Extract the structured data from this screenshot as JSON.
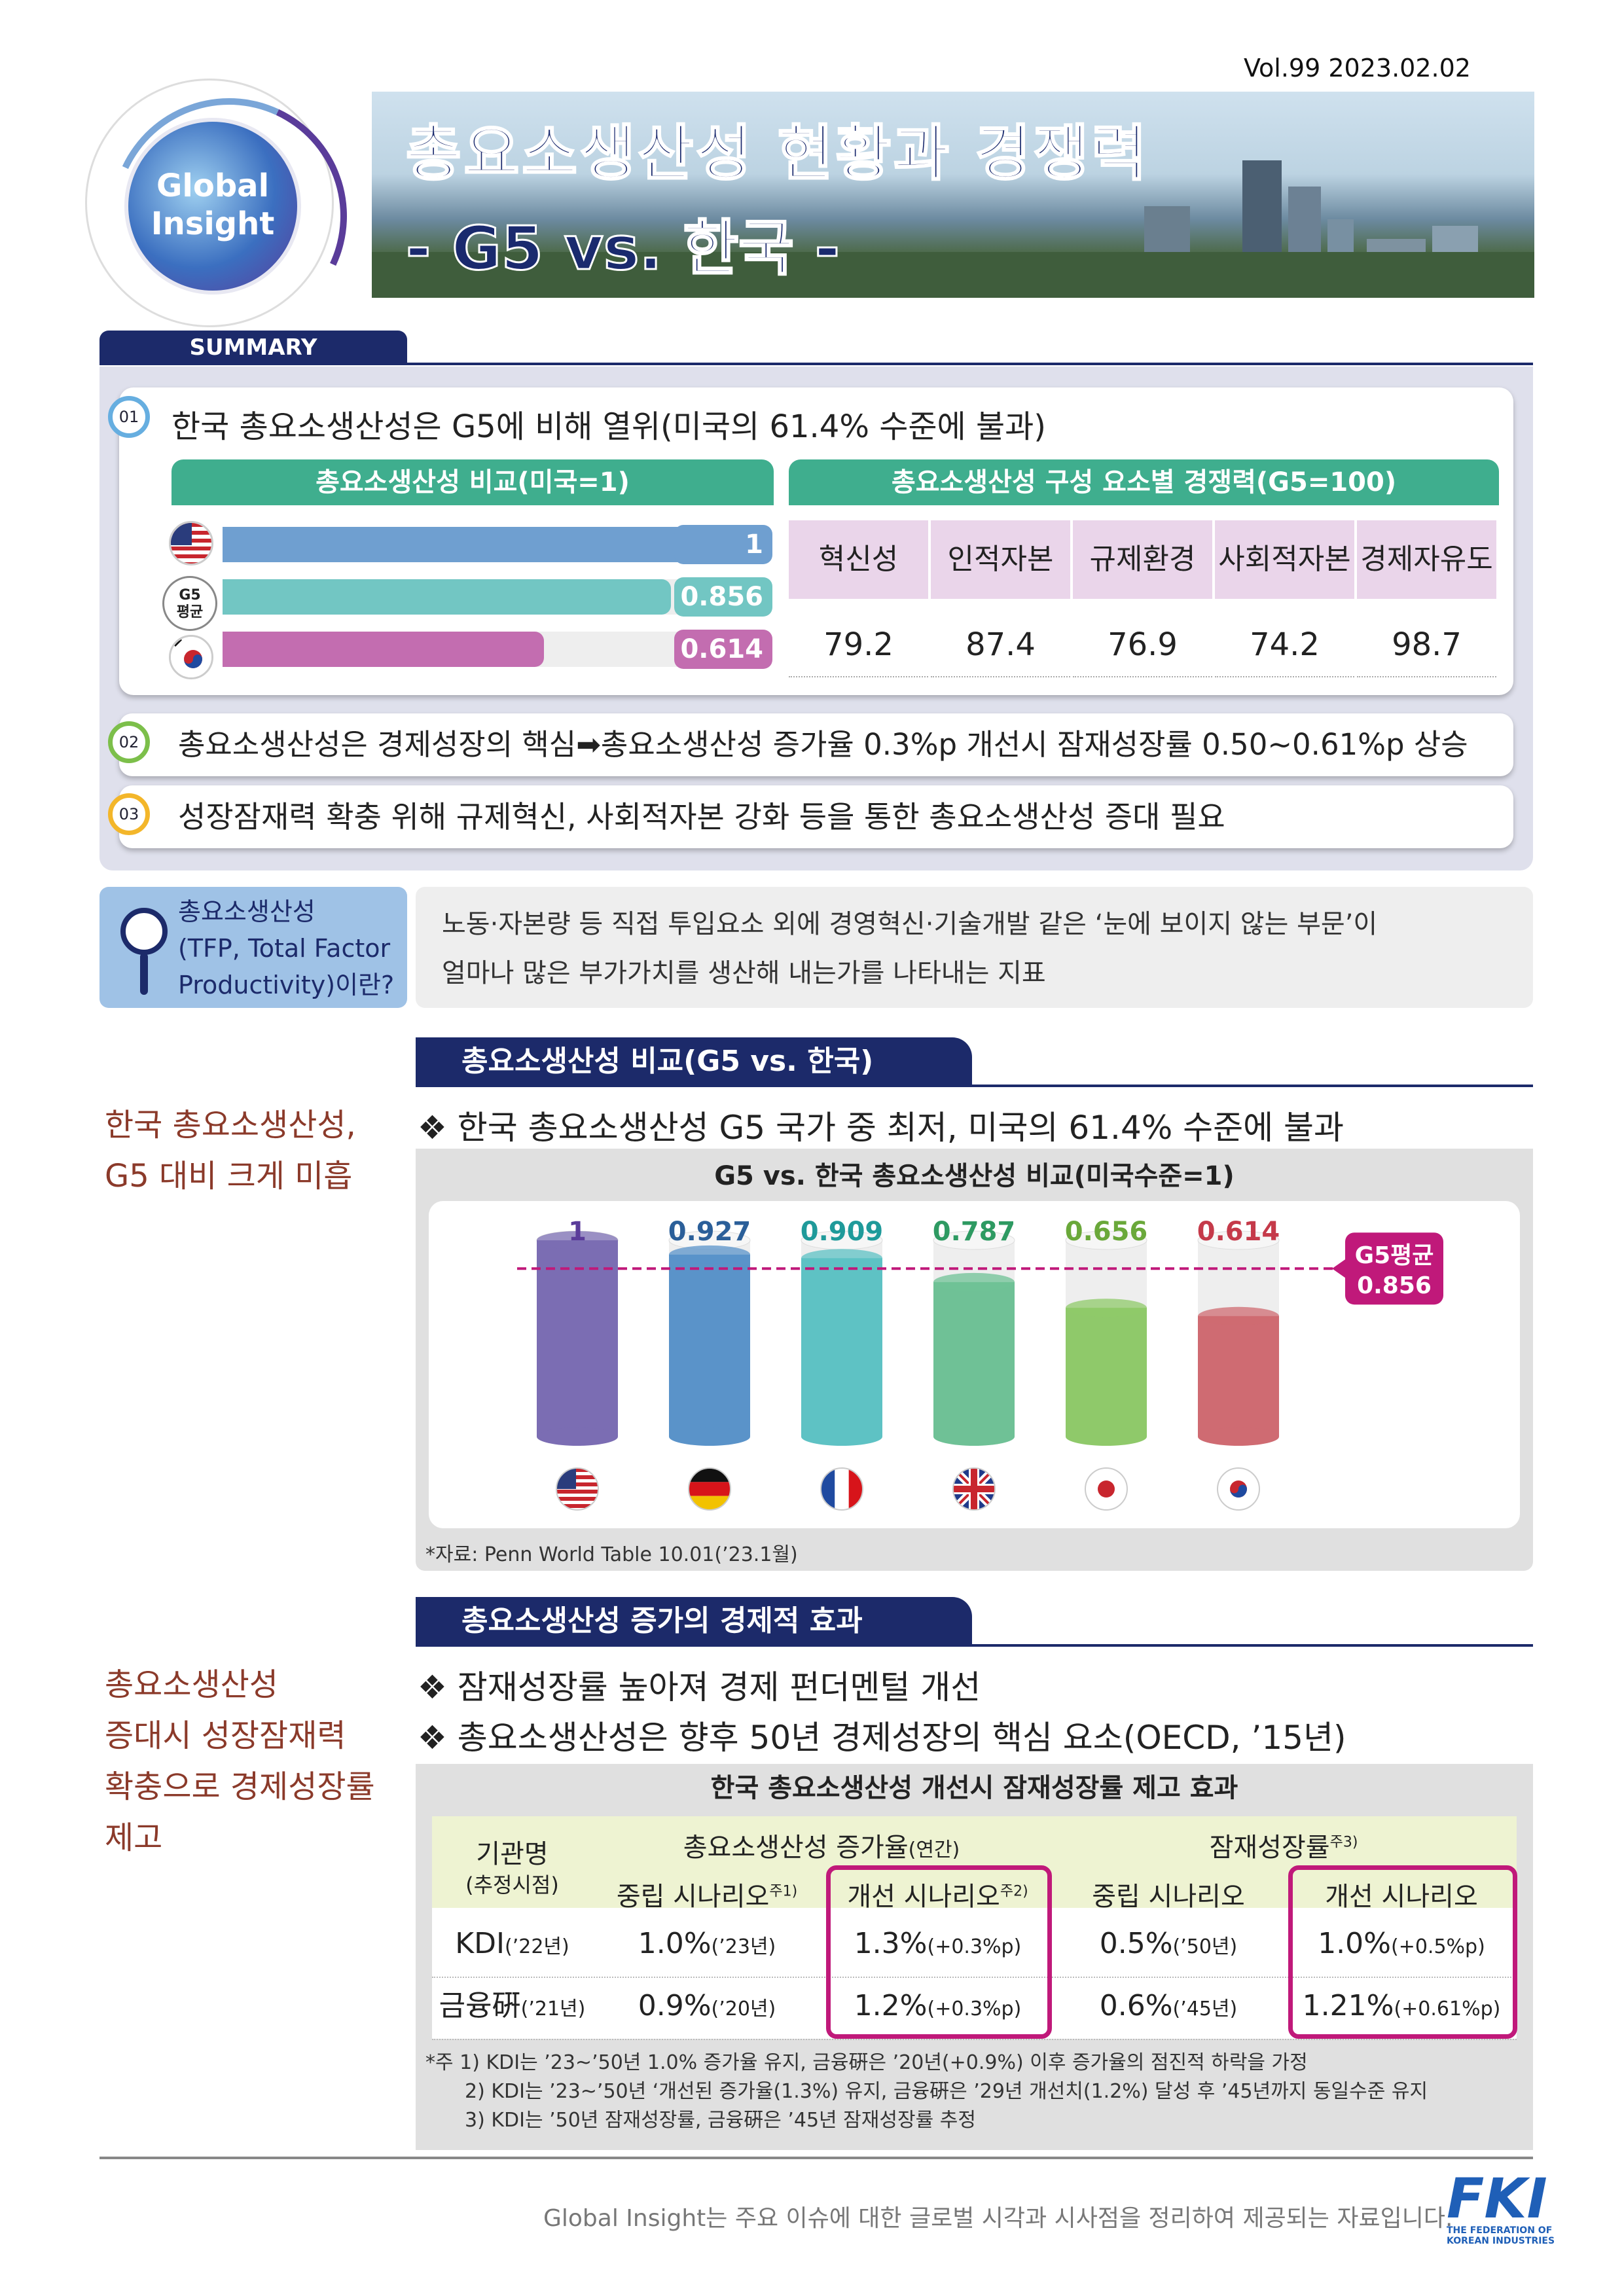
{
  "header": {
    "vol": "Vol.99  2023.02.02",
    "logo_line1": "Global",
    "logo_line2": "Insight",
    "title1": "총요소생산성 현황과 경쟁력",
    "title2": "- G5 vs. 한국 -"
  },
  "summary": {
    "tab": "SUMMARY",
    "item1": {
      "num": "01",
      "text": "한국 총요소생산성은 G5에 비해 열위(미국의 61.4% 수준에 불과)"
    },
    "left_panel": {
      "title": "총요소생산성 비교(미국=1)",
      "g5_label1": "G5",
      "g5_label2": "평균",
      "bars": [
        {
          "name": "미국",
          "value": 1,
          "label": "1",
          "color": "#6f9fd0"
        },
        {
          "name": "G5 평균",
          "value": 0.856,
          "label": "0.856",
          "color": "#72c6c3"
        },
        {
          "name": "한국",
          "value": 0.614,
          "label": "0.614",
          "color": "#c36db0"
        }
      ]
    },
    "right_panel": {
      "title": "총요소생산성 구성 요소별 경쟁력(G5=100)",
      "headers": [
        "혁신성",
        "인적자본",
        "규제환경",
        "사회적자본",
        "경제자유도"
      ],
      "values": [
        "79.2",
        "87.4",
        "76.9",
        "74.2",
        "98.7"
      ]
    },
    "item2": {
      "num": "02",
      "text": "총요소생산성은 경제성장의 핵심➡총요소생산성 증가율 0.3%p 개선시 잠재성장률 0.50~0.61%p 상승"
    },
    "item3": {
      "num": "03",
      "text": "성장잠재력 확충 위해 규제혁신, 사회적자본 강화 등을 통한 총요소생산성 증대 필요"
    }
  },
  "definition": {
    "q1": "총요소생산성",
    "q2": "(TFP, Total Factor",
    "q3": "Productivity)이란?",
    "line1": "노동·자본량 등 직접 투입요소 외에 경영혁신·기술개발 같은 ‘눈에 보이지 않는 부문’이",
    "line2": "얼마나 많은 부가가치를 생산해 내는가를 나타내는 지표"
  },
  "section1": {
    "header": "총요소생산성 비교(G5 vs. 한국)",
    "side1": "한국 총요소생산성,",
    "side2": "G5 대비 크게 미흡",
    "bullet": "❖ 한국 총요소생산성 G5 국가 중 최저, 미국의 61.4% 수준에 불과",
    "source": "*자료: Penn World Table 10.01(’23.1월)"
  },
  "chart_data": {
    "type": "bar",
    "title": "G5 vs. 한국 총요소생산성 비교(미국수준=1)",
    "categories": [
      "미국",
      "독일",
      "프랑스",
      "영국",
      "일본",
      "한국"
    ],
    "values": [
      1,
      0.927,
      0.909,
      0.787,
      0.656,
      0.614
    ],
    "labels": [
      "1",
      "0.927",
      "0.909",
      "0.787",
      "0.656",
      "0.614"
    ],
    "colors": [
      "#7b6db3",
      "#5a93c9",
      "#5ec2c4",
      "#6fc196",
      "#8fc96a",
      "#cf6b72"
    ],
    "label_colors": [
      "#5a3c9a",
      "#2b5f99",
      "#1f9a9a",
      "#2e9a62",
      "#6aa83a",
      "#c53a4a"
    ],
    "reference": {
      "label1": "G5평균",
      "label2": "0.856",
      "value": 0.856,
      "color": "#c0197a"
    },
    "ylim": [
      0,
      1
    ]
  },
  "section2": {
    "header": "총요소생산성 증가의 경제적 효과",
    "side": [
      "총요소생산성",
      "증대시 성장잠재력",
      "확충으로 경제성장률",
      "제고"
    ],
    "bullet1": "❖ 잠재성장률 높아져 경제 펀더멘털 개선",
    "bullet2": "❖ 총요소생산성은 향후 50년 경제성장의 핵심 요소(OECD, ’15년)",
    "table_title": "한국 총요소생산성 개선시 잠재성장률 제고 효과",
    "h_org1": "기관명",
    "h_org2": "(추정시점)",
    "h_tfp": "총요소생산성 증가율",
    "h_tfp_sub": "(연간)",
    "h_pot": "잠재성장률",
    "h_pot_sup": "주3)",
    "h_neutral": "중립 시나리오",
    "h_neutral_sup": "주1)",
    "h_improve": "개선 시나리오",
    "h_improve_sup": "주2)",
    "h_neutral2": "중립 시나리오",
    "h_improve2": "개선 시나리오",
    "rows": [
      {
        "org": "KDI",
        "org_year": "(’22년)",
        "c1": "1.0%",
        "c1s": "(’23년)",
        "c2": "1.3%",
        "c2s": "(+0.3%p)",
        "c3": "0.5%",
        "c3s": "(’50년)",
        "c4": "1.0%",
        "c4s": "(+0.5%p)"
      },
      {
        "org": "금융硏",
        "org_year": "(’21년)",
        "c1": "0.9%",
        "c1s": "(’20년)",
        "c2": "1.2%",
        "c2s": "(+0.3%p)",
        "c3": "0.6%",
        "c3s": "(’45년)",
        "c4": "1.21%",
        "c4s": "(+0.61%p)"
      }
    ],
    "notes": [
      "*주 1) KDI는 ’23~’50년 1.0% 증가율 유지, 금융硏은 ’20년(+0.9%) 이후 증가율의 점진적 하락을 가정",
      "2) KDI는 ’23~’50년 ‘개선된 증가율(1.3%) 유지, 금융硏은 ’29년 개선치(1.2%) 달성 후 ’45년까지 동일수준 유지",
      "3) KDI는 ’50년 잠재성장률, 금융硏은 ’45년 잠재성장률 추정"
    ]
  },
  "footer": {
    "text": "Global Insight는 주요 이슈에 대한 글로벌 시각과 시사점을 정리하여 제공되는 자료입니다.",
    "fki": "FKI",
    "fki_sub1": "THE FEDERATION OF",
    "fki_sub2": "KOREAN INDUSTRIES"
  }
}
